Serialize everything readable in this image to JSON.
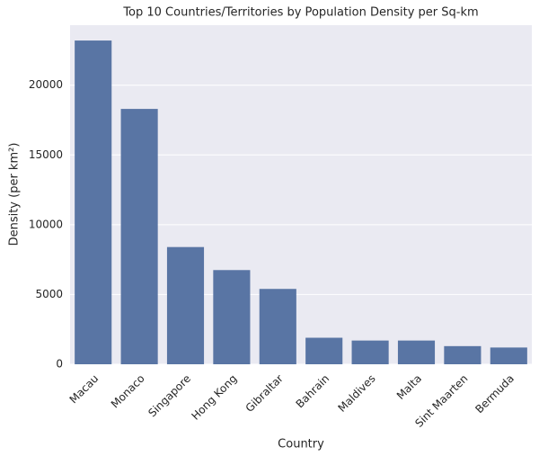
{
  "chart_data": {
    "type": "bar",
    "title": "Top 10 Countries/Territories by Population Density per Sq-km",
    "x_label": "Country",
    "y_label": "Density (per km²)",
    "categories": [
      "Macau",
      "Monaco",
      "Singapore",
      "Hong Kong",
      "Gibraltar",
      "Bahrain",
      "Maldives",
      "Malta",
      "Sint Maarten",
      "Bermuda"
    ],
    "values": [
      23200,
      18300,
      8400,
      6750,
      5400,
      1900,
      1700,
      1700,
      1300,
      1200
    ],
    "color": "#5975a4",
    "ylim": [
      0,
      24300
    ],
    "yticks": [
      0,
      5000,
      10000,
      15000,
      20000
    ],
    "grid": true
  }
}
